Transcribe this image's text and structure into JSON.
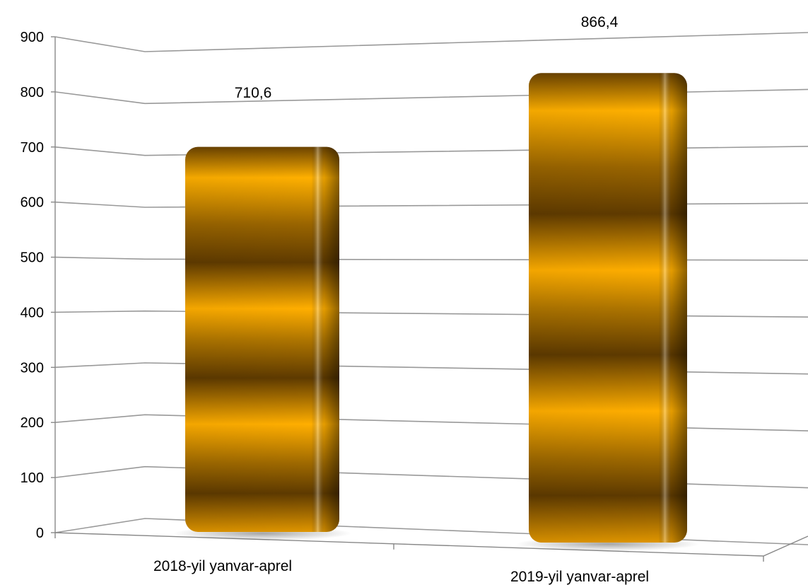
{
  "chart_data": {
    "type": "bar",
    "categories": [
      "2018-yil yanvar-aprel",
      "2019-yil yanvar-aprel"
    ],
    "values": [
      710.6,
      866.4
    ],
    "data_labels": [
      "710,6",
      "866,4"
    ],
    "yticks": [
      "0",
      "100",
      "200",
      "300",
      "400",
      "500",
      "600",
      "700",
      "800",
      "900"
    ],
    "ylim": [
      0,
      900
    ],
    "grid": true,
    "legend": "none",
    "title": "",
    "xlabel": "",
    "ylabel": "",
    "colors": {
      "bar_light": "#FFB200",
      "bar_mid": "#C98700",
      "bar_dark": "#6B4300",
      "grid": "#999999"
    }
  }
}
